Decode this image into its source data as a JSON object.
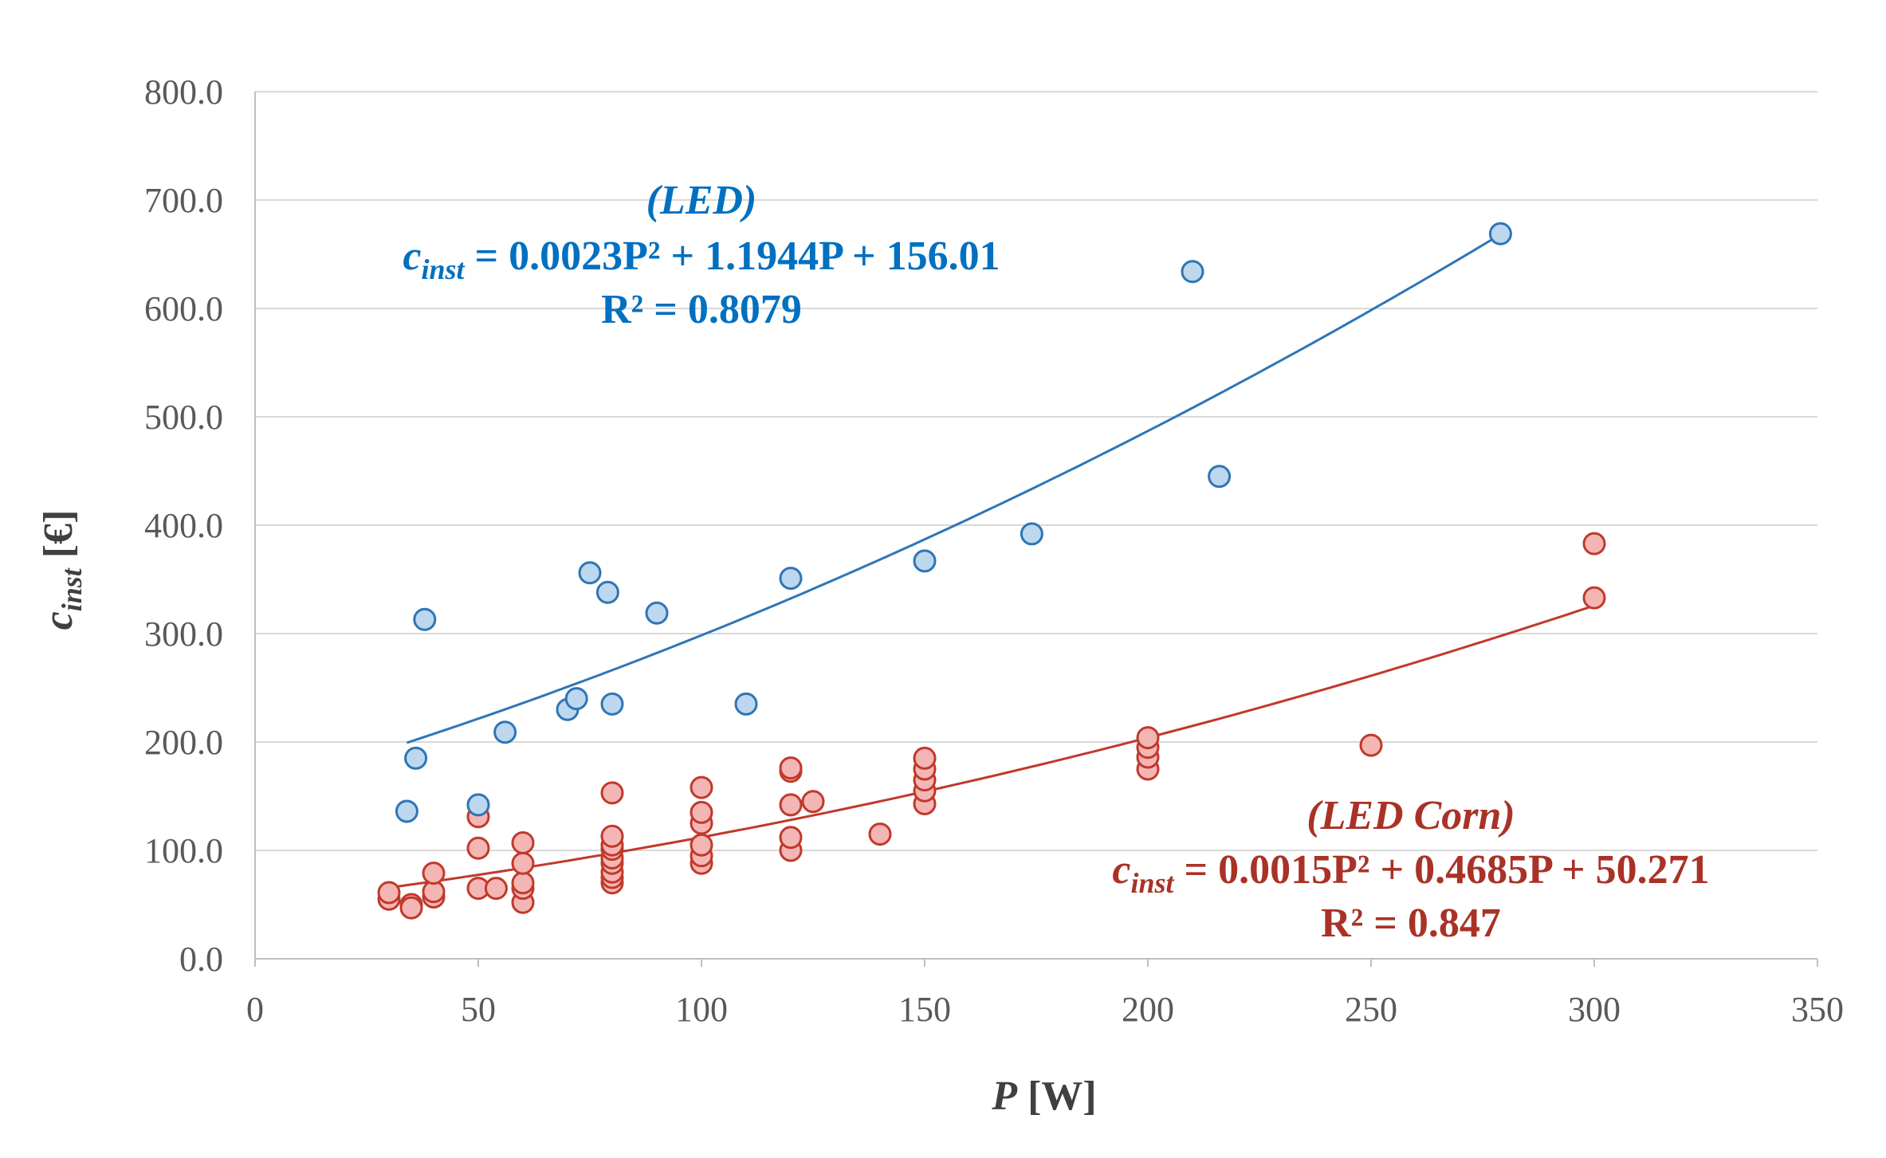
{
  "chart_data": {
    "type": "scatter",
    "xlabel": "[W]",
    "xlabel_var": "P",
    "ylabel": "[€]",
    "ylabel_var": "c",
    "ylabel_sub": "inst",
    "xlim": [
      0,
      350
    ],
    "ylim": [
      0,
      800
    ],
    "x_ticks": [
      "0",
      "50",
      "100",
      "150",
      "200",
      "250",
      "300",
      "350"
    ],
    "y_ticks": [
      "0.0",
      "100.0",
      "200.0",
      "300.0",
      "400.0",
      "500.0",
      "600.0",
      "700.0",
      "800.0"
    ],
    "grid": true,
    "series": [
      {
        "name": "LED",
        "color": "#2e75b6",
        "fill": "#bdd7ee",
        "points": [
          [
            34,
            136
          ],
          [
            36,
            185
          ],
          [
            38,
            313
          ],
          [
            50,
            142
          ],
          [
            56,
            209
          ],
          [
            70,
            230
          ],
          [
            72,
            240
          ],
          [
            75,
            356
          ],
          [
            79,
            338
          ],
          [
            80,
            235
          ],
          [
            90,
            319
          ],
          [
            110,
            235
          ],
          [
            120,
            351
          ],
          [
            150,
            367
          ],
          [
            174,
            392
          ],
          [
            210,
            634
          ],
          [
            216,
            445
          ],
          [
            279,
            669
          ]
        ],
        "fit": {
          "type": "polynomial",
          "coefficients": [
            0.0023,
            1.1944,
            156.01
          ],
          "x_range": [
            34,
            279
          ],
          "label_title": "(LED)",
          "label_lhs": "c",
          "label_sub": "inst",
          "label_rhs": " = 0.0023P² + 1.1944P + 156.01",
          "r2_label": "R² = 0.8079"
        }
      },
      {
        "name": "LED Corn",
        "color": "#c0392b",
        "fill": "#f4b6b4",
        "points": [
          [
            30,
            55
          ],
          [
            30,
            61
          ],
          [
            35,
            50
          ],
          [
            35,
            47
          ],
          [
            40,
            57
          ],
          [
            40,
            62
          ],
          [
            40,
            79
          ],
          [
            50,
            65
          ],
          [
            50,
            102
          ],
          [
            50,
            131
          ],
          [
            54,
            65
          ],
          [
            60,
            52
          ],
          [
            60,
            65
          ],
          [
            60,
            70
          ],
          [
            60,
            88
          ],
          [
            60,
            107
          ],
          [
            80,
            70
          ],
          [
            80,
            75
          ],
          [
            80,
            80
          ],
          [
            80,
            88
          ],
          [
            80,
            93
          ],
          [
            80,
            101
          ],
          [
            80,
            105
          ],
          [
            80,
            113
          ],
          [
            80,
            153
          ],
          [
            100,
            88
          ],
          [
            100,
            95
          ],
          [
            100,
            105
          ],
          [
            100,
            125
          ],
          [
            100,
            135
          ],
          [
            100,
            158
          ],
          [
            120,
            100
          ],
          [
            120,
            112
          ],
          [
            120,
            142
          ],
          [
            120,
            173
          ],
          [
            120,
            176
          ],
          [
            125,
            145
          ],
          [
            140,
            115
          ],
          [
            150,
            143
          ],
          [
            150,
            155
          ],
          [
            150,
            165
          ],
          [
            150,
            175
          ],
          [
            150,
            185
          ],
          [
            200,
            175
          ],
          [
            200,
            186
          ],
          [
            200,
            195
          ],
          [
            200,
            204
          ],
          [
            250,
            197
          ],
          [
            300,
            333
          ],
          [
            300,
            383
          ]
        ],
        "fit": {
          "type": "polynomial",
          "coefficients": [
            0.0015,
            0.4685,
            50.271
          ],
          "x_range": [
            30,
            300
          ],
          "label_title": "(LED Corn)",
          "label_lhs": "c",
          "label_sub": "inst",
          "label_rhs": " = 0.0015P² + 0.4685P + 50.271",
          "r2_label": "R² = 0.847"
        }
      }
    ]
  }
}
